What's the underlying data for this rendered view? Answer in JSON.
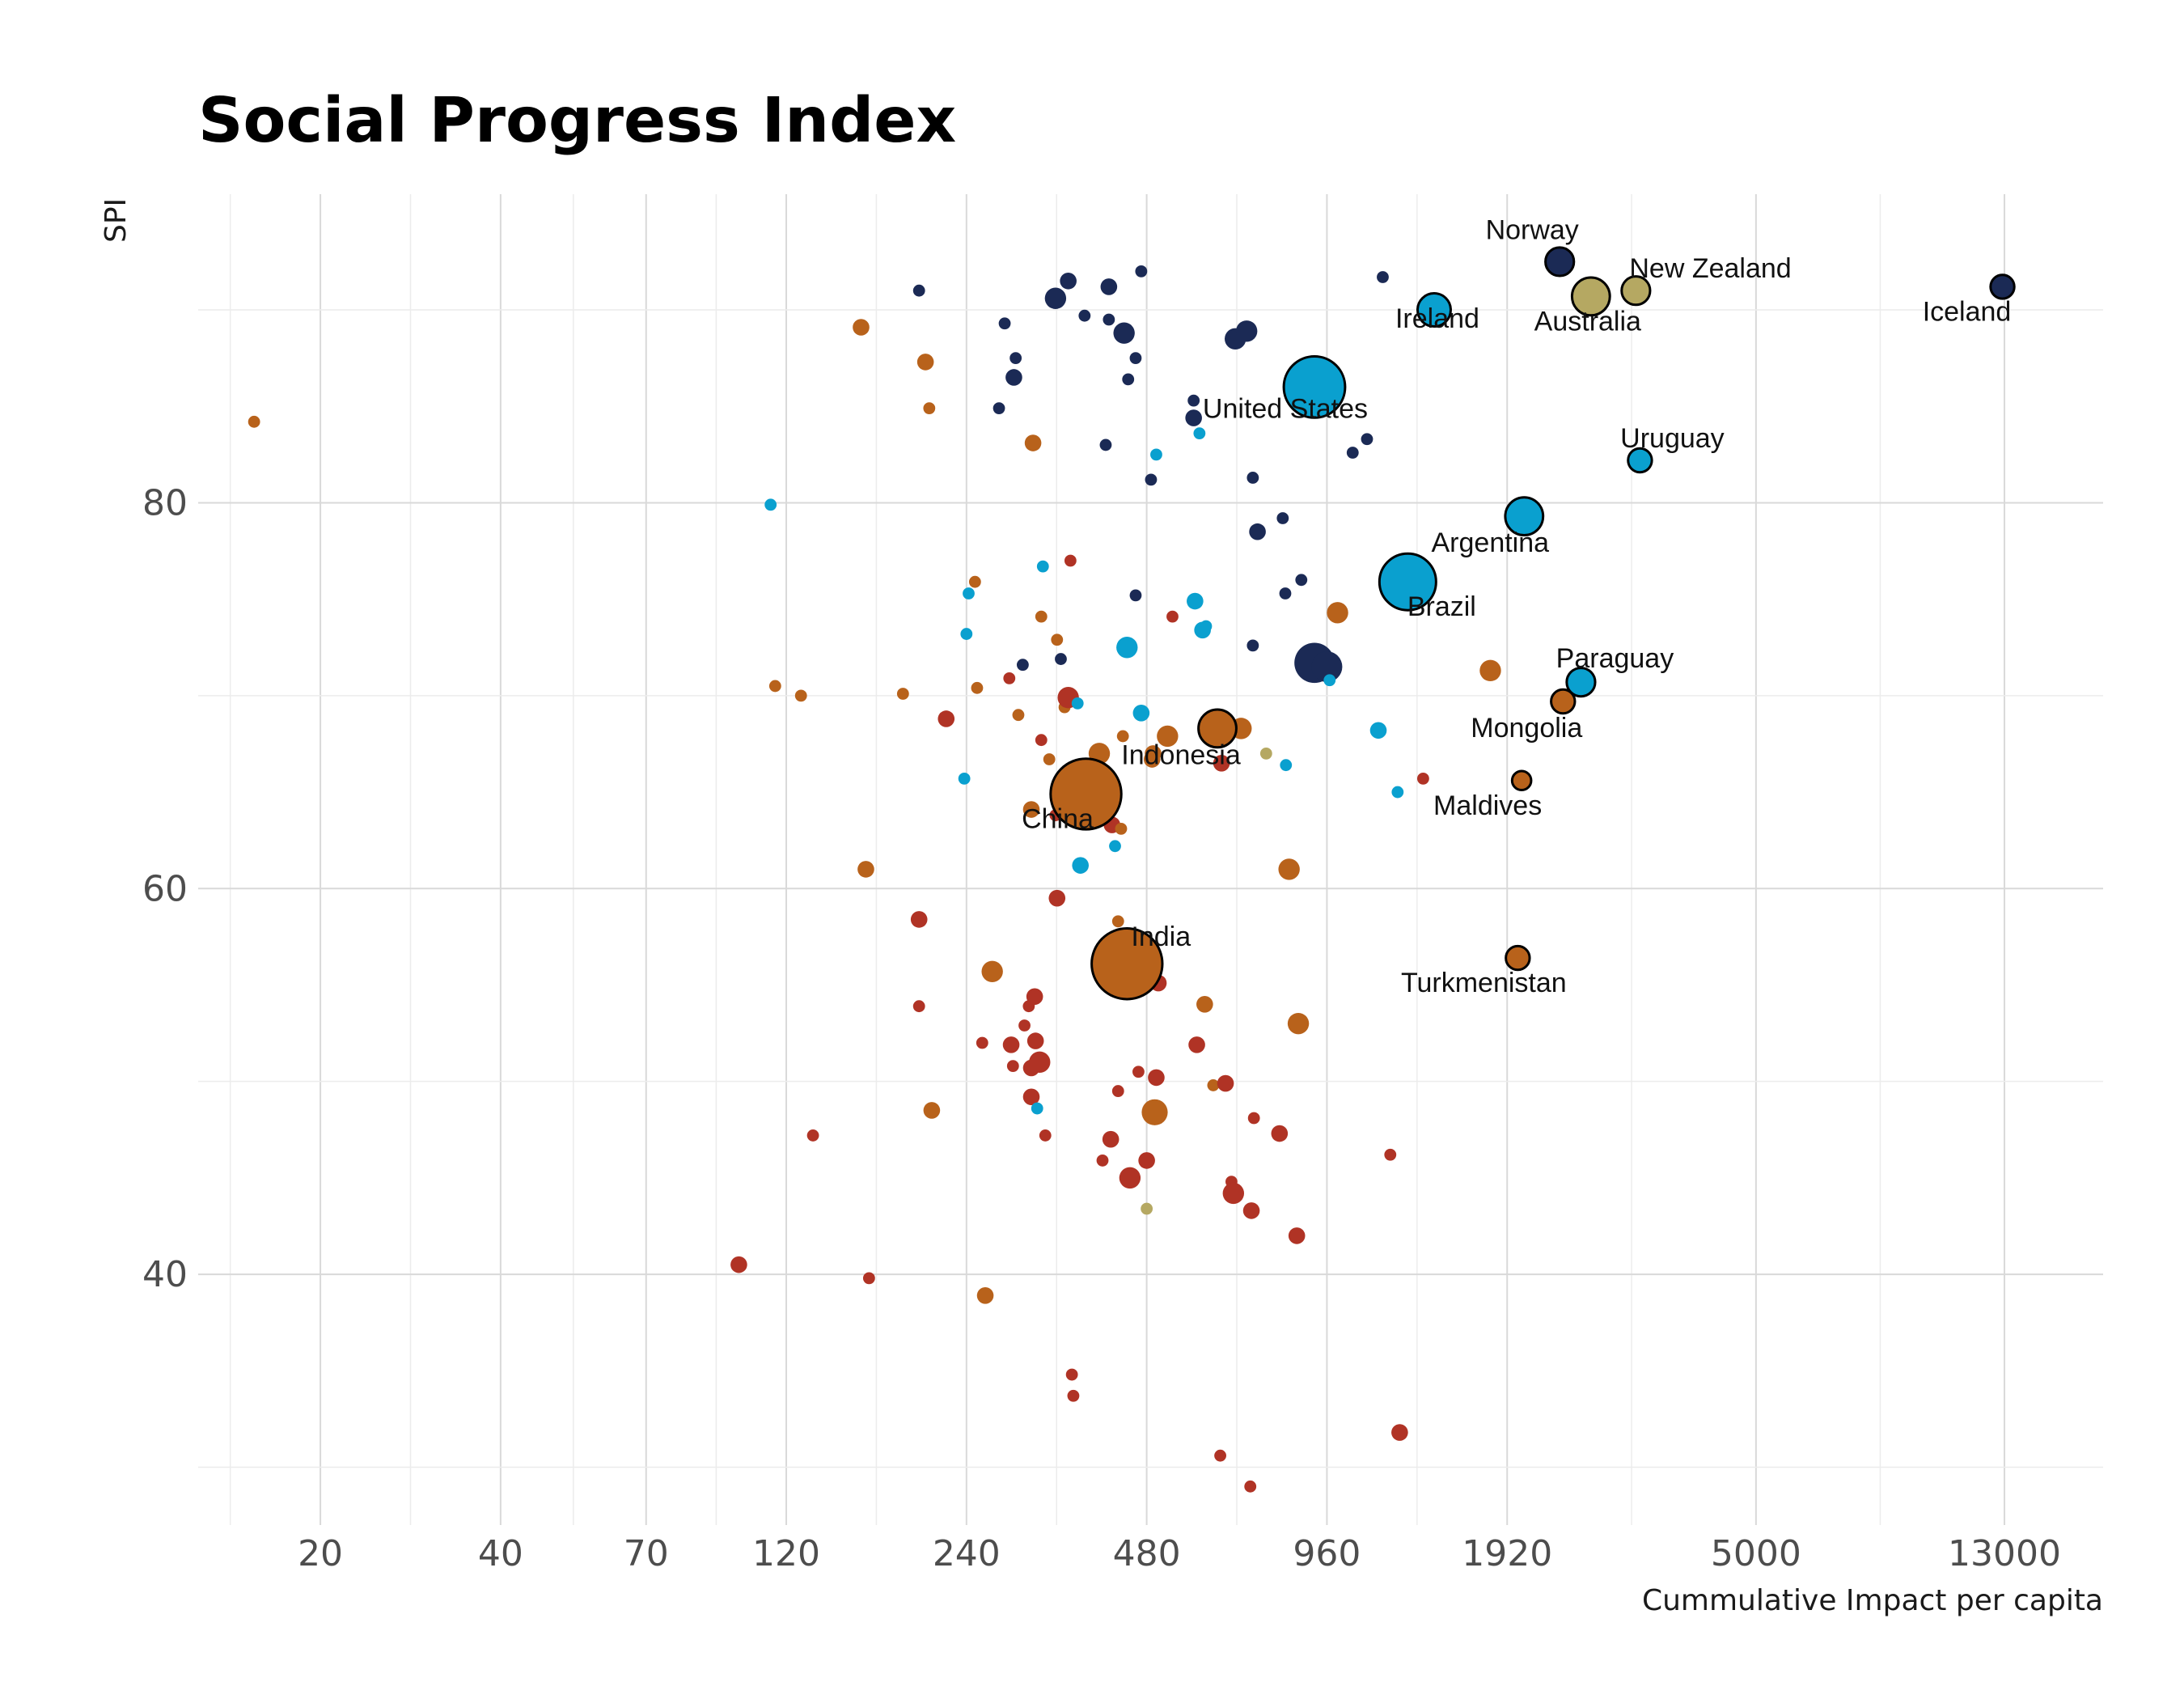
{
  "chart_data": {
    "type": "scatter",
    "title": "Social Progress Index",
    "xlabel": "Cummulative Impact per capita",
    "ylabel": "SPI",
    "x_scale": "log",
    "xlim": [
      12.5,
      19000
    ],
    "ylim": [
      27,
      96
    ],
    "x_ticks": [
      20,
      40,
      70,
      120,
      240,
      480,
      960,
      1920,
      5000,
      13000
    ],
    "y_ticks": [
      40,
      60,
      80
    ],
    "grid": true,
    "legend": "none",
    "colors": {
      "navy": "#1b2a55",
      "cyan": "#0aa0cf",
      "orange": "#b8621b",
      "red": "#b03325",
      "khaki": "#b5a862"
    },
    "points": [
      {
        "x": 15.5,
        "y": 84.2,
        "s": 1,
        "c": "orange"
      },
      {
        "x": 113,
        "y": 79.9,
        "s": 1,
        "c": "cyan"
      },
      {
        "x": 115,
        "y": 70.5,
        "s": 1,
        "c": "orange"
      },
      {
        "x": 127,
        "y": 70.0,
        "s": 1,
        "c": "orange"
      },
      {
        "x": 133,
        "y": 47.2,
        "s": 1,
        "c": "red"
      },
      {
        "x": 100,
        "y": 40.5,
        "s": 2,
        "c": "red"
      },
      {
        "x": 160,
        "y": 89.1,
        "s": 2,
        "c": "orange"
      },
      {
        "x": 163,
        "y": 61.0,
        "s": 2,
        "c": "orange"
      },
      {
        "x": 165,
        "y": 39.8,
        "s": 1,
        "c": "red"
      },
      {
        "x": 188,
        "y": 70.1,
        "s": 1,
        "c": "orange"
      },
      {
        "x": 200,
        "y": 91.0,
        "s": 1,
        "c": "navy"
      },
      {
        "x": 200,
        "y": 58.4,
        "s": 2,
        "c": "red"
      },
      {
        "x": 200,
        "y": 53.9,
        "s": 1,
        "c": "red"
      },
      {
        "x": 205,
        "y": 87.3,
        "s": 2,
        "c": "orange"
      },
      {
        "x": 208,
        "y": 84.9,
        "s": 1,
        "c": "orange"
      },
      {
        "x": 210,
        "y": 48.5,
        "s": 2,
        "c": "orange"
      },
      {
        "x": 222,
        "y": 68.8,
        "s": 2,
        "c": "red"
      },
      {
        "x": 238,
        "y": 65.7,
        "s": 1,
        "c": "cyan"
      },
      {
        "x": 240,
        "y": 73.2,
        "s": 1,
        "c": "cyan"
      },
      {
        "x": 242,
        "y": 75.3,
        "s": 1,
        "c": "cyan"
      },
      {
        "x": 248,
        "y": 75.9,
        "s": 1,
        "c": "orange"
      },
      {
        "x": 250,
        "y": 70.4,
        "s": 1,
        "c": "orange"
      },
      {
        "x": 255,
        "y": 52.0,
        "s": 1,
        "c": "red"
      },
      {
        "x": 258,
        "y": 38.9,
        "s": 2,
        "c": "orange"
      },
      {
        "x": 265,
        "y": 55.7,
        "s": 3,
        "c": "orange"
      },
      {
        "x": 272,
        "y": 84.9,
        "s": 1,
        "c": "navy"
      },
      {
        "x": 278,
        "y": 89.3,
        "s": 1,
        "c": "navy"
      },
      {
        "x": 283,
        "y": 70.9,
        "s": 1,
        "c": "red"
      },
      {
        "x": 285,
        "y": 51.9,
        "s": 2,
        "c": "red"
      },
      {
        "x": 287,
        "y": 50.8,
        "s": 1,
        "c": "red"
      },
      {
        "x": 288,
        "y": 86.5,
        "s": 2,
        "c": "navy"
      },
      {
        "x": 290,
        "y": 87.5,
        "s": 1,
        "c": "navy"
      },
      {
        "x": 293,
        "y": 69.0,
        "s": 1,
        "c": "orange"
      },
      {
        "x": 298,
        "y": 71.6,
        "s": 1,
        "c": "navy"
      },
      {
        "x": 300,
        "y": 52.9,
        "s": 1,
        "c": "red"
      },
      {
        "x": 305,
        "y": 53.9,
        "s": 1,
        "c": "red"
      },
      {
        "x": 308,
        "y": 49.2,
        "s": 2,
        "c": "red"
      },
      {
        "x": 308,
        "y": 64.1,
        "s": 2,
        "c": "orange"
      },
      {
        "x": 308,
        "y": 50.7,
        "s": 2,
        "c": "red"
      },
      {
        "x": 310,
        "y": 83.1,
        "s": 2,
        "c": "orange"
      },
      {
        "x": 312,
        "y": 54.4,
        "s": 2,
        "c": "red"
      },
      {
        "x": 313,
        "y": 52.1,
        "s": 2,
        "c": "red"
      },
      {
        "x": 315,
        "y": 48.6,
        "s": 1,
        "c": "cyan"
      },
      {
        "x": 318,
        "y": 51.0,
        "s": 3,
        "c": "red"
      },
      {
        "x": 320,
        "y": 67.7,
        "s": 1,
        "c": "red"
      },
      {
        "x": 320,
        "y": 74.1,
        "s": 1,
        "c": "orange"
      },
      {
        "x": 322,
        "y": 76.7,
        "s": 1,
        "c": "cyan"
      },
      {
        "x": 325,
        "y": 47.2,
        "s": 1,
        "c": "red"
      },
      {
        "x": 330,
        "y": 66.7,
        "s": 1,
        "c": "orange"
      },
      {
        "x": 338,
        "y": 63.8,
        "s": 1,
        "c": "red"
      },
      {
        "x": 338,
        "y": 90.6,
        "s": 3,
        "c": "navy"
      },
      {
        "x": 340,
        "y": 59.5,
        "s": 2,
        "c": "red"
      },
      {
        "x": 340,
        "y": 72.9,
        "s": 1,
        "c": "orange"
      },
      {
        "x": 345,
        "y": 71.9,
        "s": 1,
        "c": "navy"
      },
      {
        "x": 350,
        "y": 69.4,
        "s": 1,
        "c": "orange"
      },
      {
        "x": 355,
        "y": 91.5,
        "s": 2,
        "c": "navy"
      },
      {
        "x": 355,
        "y": 69.9,
        "s": 3,
        "c": "red"
      },
      {
        "x": 358,
        "y": 77.0,
        "s": 1,
        "c": "red"
      },
      {
        "x": 360,
        "y": 34.8,
        "s": 1,
        "c": "red"
      },
      {
        "x": 362,
        "y": 33.7,
        "s": 1,
        "c": "red"
      },
      {
        "x": 368,
        "y": 69.6,
        "s": 1,
        "c": "cyan"
      },
      {
        "x": 372,
        "y": 61.2,
        "s": 2,
        "c": "cyan"
      },
      {
        "x": 378,
        "y": 89.7,
        "s": 1,
        "c": "navy"
      },
      {
        "x": 392,
        "y": 66.2,
        "s": 3,
        "c": "orange"
      },
      {
        "x": 400,
        "y": 67.0,
        "s": 3,
        "c": "orange"
      },
      {
        "x": 405,
        "y": 45.9,
        "s": 1,
        "c": "red"
      },
      {
        "x": 410,
        "y": 83.0,
        "s": 1,
        "c": "navy"
      },
      {
        "x": 415,
        "y": 91.2,
        "s": 2,
        "c": "navy"
      },
      {
        "x": 415,
        "y": 89.5,
        "s": 1,
        "c": "navy"
      },
      {
        "x": 418,
        "y": 47.0,
        "s": 2,
        "c": "red"
      },
      {
        "x": 420,
        "y": 63.3,
        "s": 2,
        "c": "red"
      },
      {
        "x": 425,
        "y": 62.2,
        "s": 1,
        "c": "cyan"
      },
      {
        "x": 430,
        "y": 58.3,
        "s": 1,
        "c": "orange"
      },
      {
        "x": 430,
        "y": 49.5,
        "s": 1,
        "c": "red"
      },
      {
        "x": 435,
        "y": 63.1,
        "s": 1,
        "c": "orange"
      },
      {
        "x": 438,
        "y": 67.9,
        "s": 1,
        "c": "orange"
      },
      {
        "x": 440,
        "y": 88.8,
        "s": 3,
        "c": "navy"
      },
      {
        "x": 445,
        "y": 72.5,
        "s": 3,
        "c": "cyan"
      },
      {
        "x": 447,
        "y": 86.4,
        "s": 1,
        "c": "navy"
      },
      {
        "x": 450,
        "y": 45.0,
        "s": 3,
        "c": "red"
      },
      {
        "x": 460,
        "y": 87.5,
        "s": 1,
        "c": "navy"
      },
      {
        "x": 460,
        "y": 75.2,
        "s": 1,
        "c": "navy"
      },
      {
        "x": 465,
        "y": 50.5,
        "s": 1,
        "c": "red"
      },
      {
        "x": 470,
        "y": 92.0,
        "s": 1,
        "c": "navy"
      },
      {
        "x": 470,
        "y": 69.1,
        "s": 2,
        "c": "cyan"
      },
      {
        "x": 475,
        "y": 56.0,
        "s": 3,
        "c": "orange"
      },
      {
        "x": 480,
        "y": 45.9,
        "s": 2,
        "c": "red"
      },
      {
        "x": 480,
        "y": 43.4,
        "s": 1,
        "c": "khaki"
      },
      {
        "x": 485,
        "y": 57.0,
        "s": 2,
        "c": "red"
      },
      {
        "x": 488,
        "y": 81.2,
        "s": 1,
        "c": "navy"
      },
      {
        "x": 490,
        "y": 66.7,
        "s": 2,
        "c": "orange"
      },
      {
        "x": 492,
        "y": 67.0,
        "s": 2,
        "c": "orange"
      },
      {
        "x": 495,
        "y": 48.4,
        "s": 4,
        "c": "orange"
      },
      {
        "x": 498,
        "y": 50.2,
        "s": 2,
        "c": "red"
      },
      {
        "x": 498,
        "y": 82.5,
        "s": 1,
        "c": "cyan"
      },
      {
        "x": 502,
        "y": 55.1,
        "s": 2,
        "c": "red"
      },
      {
        "x": 520,
        "y": 67.9,
        "s": 3,
        "c": "orange"
      },
      {
        "x": 530,
        "y": 74.1,
        "s": 1,
        "c": "red"
      },
      {
        "x": 575,
        "y": 85.3,
        "s": 1,
        "c": "navy"
      },
      {
        "x": 575,
        "y": 84.4,
        "s": 2,
        "c": "navy"
      },
      {
        "x": 578,
        "y": 74.9,
        "s": 2,
        "c": "cyan"
      },
      {
        "x": 582,
        "y": 51.9,
        "s": 2,
        "c": "red"
      },
      {
        "x": 588,
        "y": 83.6,
        "s": 1,
        "c": "cyan"
      },
      {
        "x": 595,
        "y": 73.4,
        "s": 2,
        "c": "cyan"
      },
      {
        "x": 600,
        "y": 54.0,
        "s": 2,
        "c": "orange"
      },
      {
        "x": 603,
        "y": 73.6,
        "s": 1,
        "c": "cyan"
      },
      {
        "x": 620,
        "y": 49.8,
        "s": 1,
        "c": "orange"
      },
      {
        "x": 630,
        "y": 68.3,
        "s": 6,
        "c": "orange"
      },
      {
        "x": 637,
        "y": 30.6,
        "s": 1,
        "c": "red"
      },
      {
        "x": 640,
        "y": 66.5,
        "s": 2,
        "c": "red"
      },
      {
        "x": 650,
        "y": 49.9,
        "s": 2,
        "c": "red"
      },
      {
        "x": 665,
        "y": 44.8,
        "s": 1,
        "c": "red"
      },
      {
        "x": 670,
        "y": 44.2,
        "s": 3,
        "c": "red"
      },
      {
        "x": 675,
        "y": 88.5,
        "s": 3,
        "c": "navy"
      },
      {
        "x": 690,
        "y": 68.3,
        "s": 3,
        "c": "orange"
      },
      {
        "x": 705,
        "y": 88.9,
        "s": 3,
        "c": "navy"
      },
      {
        "x": 715,
        "y": 29.0,
        "s": 1,
        "c": "red"
      },
      {
        "x": 718,
        "y": 43.3,
        "s": 2,
        "c": "red"
      },
      {
        "x": 722,
        "y": 81.3,
        "s": 1,
        "c": "navy"
      },
      {
        "x": 722,
        "y": 72.6,
        "s": 1,
        "c": "navy"
      },
      {
        "x": 725,
        "y": 48.1,
        "s": 1,
        "c": "red"
      },
      {
        "x": 735,
        "y": 78.5,
        "s": 2,
        "c": "navy"
      },
      {
        "x": 760,
        "y": 67.0,
        "s": 1,
        "c": "khaki"
      },
      {
        "x": 800,
        "y": 47.3,
        "s": 2,
        "c": "red"
      },
      {
        "x": 810,
        "y": 79.2,
        "s": 1,
        "c": "navy"
      },
      {
        "x": 818,
        "y": 75.3,
        "s": 1,
        "c": "navy"
      },
      {
        "x": 820,
        "y": 66.4,
        "s": 1,
        "c": "cyan"
      },
      {
        "x": 830,
        "y": 61.0,
        "s": 3,
        "c": "orange"
      },
      {
        "x": 855,
        "y": 42.0,
        "s": 2,
        "c": "red"
      },
      {
        "x": 860,
        "y": 53.0,
        "s": 3,
        "c": "orange"
      },
      {
        "x": 870,
        "y": 76.0,
        "s": 1,
        "c": "navy"
      },
      {
        "x": 915,
        "y": 71.7,
        "s": 7,
        "c": "navy"
      },
      {
        "x": 915,
        "y": 86.0,
        "s": 11,
        "c": "cyan"
      },
      {
        "x": 960,
        "y": 71.5,
        "s": 5,
        "c": "navy"
      },
      {
        "x": 970,
        "y": 70.8,
        "s": 1,
        "c": "cyan"
      },
      {
        "x": 1000,
        "y": 74.3,
        "s": 3,
        "c": "orange"
      },
      {
        "x": 1060,
        "y": 82.6,
        "s": 1,
        "c": "navy"
      },
      {
        "x": 1120,
        "y": 83.3,
        "s": 1,
        "c": "navy"
      },
      {
        "x": 1170,
        "y": 68.2,
        "s": 2,
        "c": "cyan"
      },
      {
        "x": 1190,
        "y": 91.7,
        "s": 1,
        "c": "navy"
      },
      {
        "x": 1225,
        "y": 46.2,
        "s": 1,
        "c": "red"
      },
      {
        "x": 1260,
        "y": 65.0,
        "s": 1,
        "c": "cyan"
      },
      {
        "x": 1270,
        "y": 31.8,
        "s": 2,
        "c": "red"
      },
      {
        "x": 1390,
        "y": 65.7,
        "s": 1,
        "c": "red"
      },
      {
        "x": 1800,
        "y": 71.3,
        "s": 3,
        "c": "orange"
      }
    ],
    "labeled_points": [
      {
        "name": "Norway",
        "x": 2350,
        "y": 92.5,
        "s": 4,
        "c": "navy",
        "lx": -34,
        "ly": -28,
        "anchor": "middle"
      },
      {
        "name": "New Zealand",
        "x": 3150,
        "y": 91.0,
        "s": 4,
        "c": "khaki",
        "lx": -8,
        "ly": -16,
        "anchor": "start"
      },
      {
        "name": "Iceland",
        "x": 12900,
        "y": 91.2,
        "s": 3,
        "c": "navy",
        "lx": -44,
        "ly": 42,
        "anchor": "middle"
      },
      {
        "name": "Ireland",
        "x": 1450,
        "y": 90.0,
        "s": 5,
        "c": "cyan",
        "lx": 4,
        "ly": 22,
        "anchor": "middle"
      },
      {
        "name": "Australia",
        "x": 2650,
        "y": 90.7,
        "s": 6,
        "c": "khaki",
        "lx": -4,
        "ly": 42,
        "anchor": "middle"
      },
      {
        "name": "United States",
        "x": 915,
        "y": 86.0,
        "s": 11,
        "c": "cyan",
        "lx": -36,
        "ly": 38,
        "anchor": "middle"
      },
      {
        "name": "Uruguay",
        "x": 3200,
        "y": 82.2,
        "s": 3,
        "c": "cyan",
        "lx": 40,
        "ly": -16,
        "anchor": "middle"
      },
      {
        "name": "Argentina",
        "x": 2050,
        "y": 79.3,
        "s": 6,
        "c": "cyan",
        "lx": -42,
        "ly": 44,
        "anchor": "middle"
      },
      {
        "name": "Brazil",
        "x": 1310,
        "y": 75.9,
        "s": 10,
        "c": "cyan",
        "lx": 42,
        "ly": 42,
        "anchor": "middle"
      },
      {
        "name": "Paraguay",
        "x": 2550,
        "y": 70.7,
        "s": 4,
        "c": "cyan",
        "lx": 42,
        "ly": -18,
        "anchor": "middle"
      },
      {
        "name": "Mongolia",
        "x": 2380,
        "y": 69.7,
        "s": 3,
        "c": "orange",
        "lx": -45,
        "ly": 44,
        "anchor": "middle"
      },
      {
        "name": "Maldives",
        "x": 2030,
        "y": 65.6,
        "s": 2,
        "c": "orange",
        "lx": -42,
        "ly": 42,
        "anchor": "middle"
      },
      {
        "name": "Turkmenistan",
        "x": 2000,
        "y": 56.4,
        "s": 3,
        "c": "orange",
        "lx": -42,
        "ly": 42,
        "anchor": "middle"
      },
      {
        "name": "Indonesia",
        "x": 630,
        "y": 68.3,
        "s": 6,
        "c": "orange",
        "lx": -45,
        "ly": 44,
        "anchor": "middle"
      },
      {
        "name": "China",
        "x": 380,
        "y": 64.9,
        "s": 13,
        "c": "orange",
        "lx": -35,
        "ly": 42,
        "anchor": "middle"
      },
      {
        "name": "India",
        "x": 445,
        "y": 56.1,
        "s": 13,
        "c": "orange",
        "lx": 42,
        "ly": -22,
        "anchor": "middle"
      }
    ]
  }
}
